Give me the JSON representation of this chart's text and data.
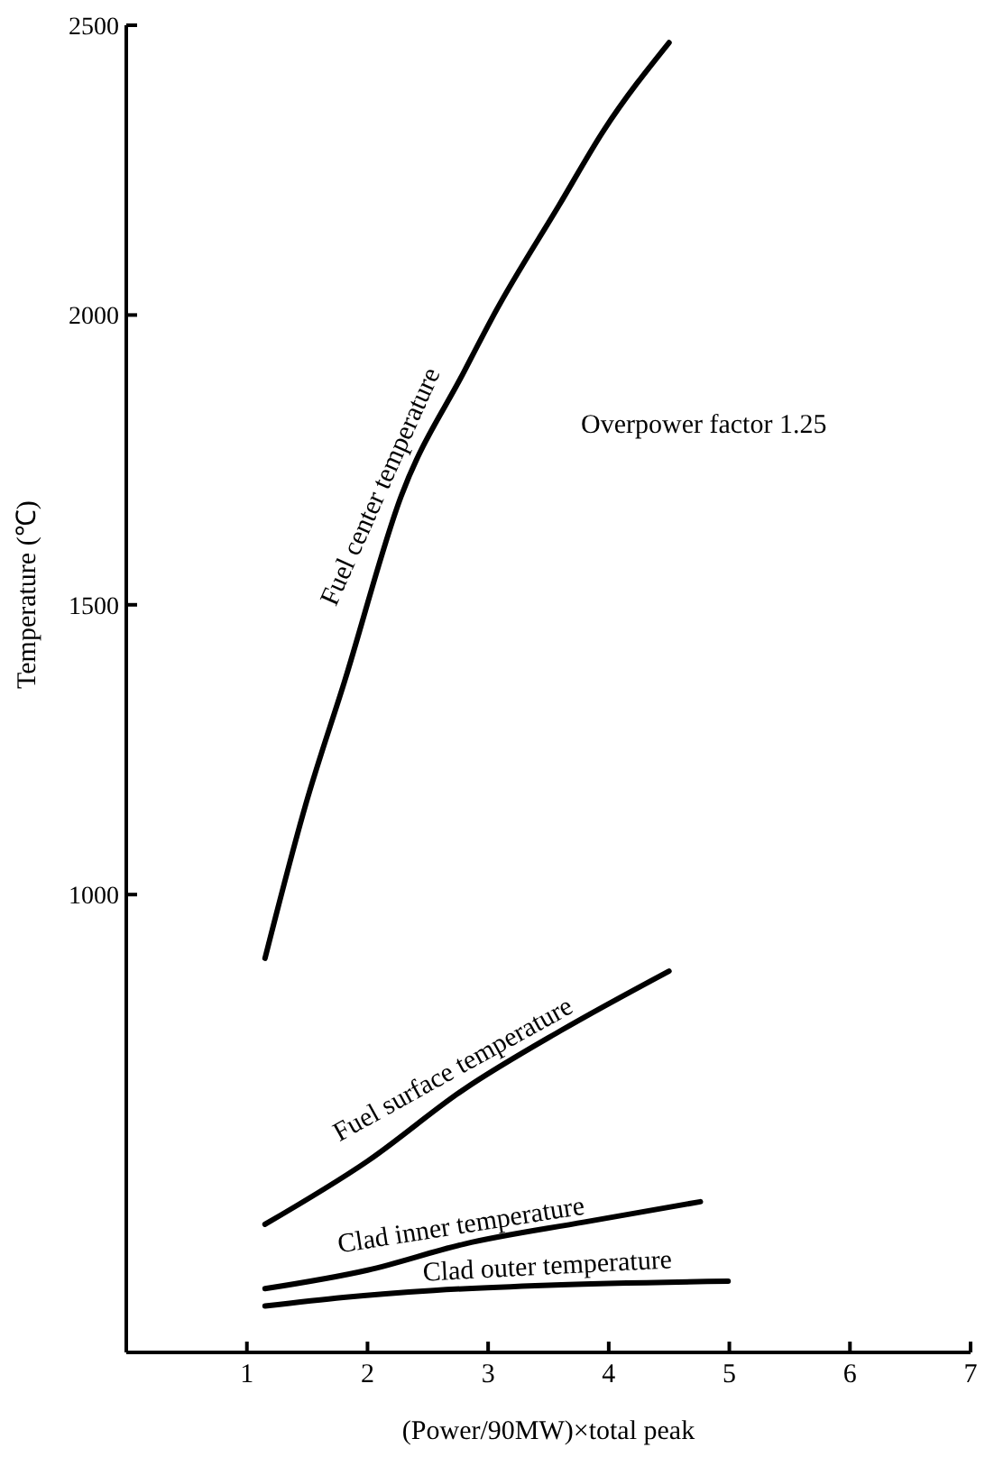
{
  "chart_data": {
    "type": "line",
    "xlabel": "(Power/90MW)×total peak",
    "ylabel": "Temperature (℃)",
    "annotations": [
      "Overpower factor 1.25"
    ],
    "xlim": [
      0,
      7
    ],
    "xticks": [
      1,
      2,
      3,
      4,
      5,
      6,
      7
    ],
    "ylim": [
      210,
      2500
    ],
    "yticks": [
      1000,
      1500,
      2000,
      2500
    ],
    "grid": false,
    "legend": false,
    "marker": "none",
    "line_style": "solid",
    "series": [
      {
        "name": "Fuel center temperature",
        "color": "#000000",
        "x": [
          1.15,
          1.49,
          1.81,
          2.28,
          2.8,
          3.07,
          3.59,
          3.96,
          4.5
        ],
        "values": [
          890,
          1157,
          1368,
          1688,
          1902,
          2009,
          2190,
          2319,
          2470
        ]
      },
      {
        "name": "Fuel surface temperature",
        "color": "#000000",
        "x": [
          1.15,
          2.0,
          2.8,
          3.6,
          4.5
        ],
        "values": [
          431,
          540,
          664,
          765,
          868
        ]
      },
      {
        "name": "Clad inner temperature",
        "color": "#000000",
        "x": [
          1.15,
          2.0,
          2.8,
          3.8,
          4.76
        ],
        "values": [
          320,
          352,
          397,
          435,
          470
        ]
      },
      {
        "name": "Clad outer temperature",
        "color": "#000000",
        "x": [
          1.15,
          1.8,
          2.55,
          3.5,
          4.99
        ],
        "values": [
          290,
          305,
          317,
          326,
          333
        ]
      }
    ]
  }
}
